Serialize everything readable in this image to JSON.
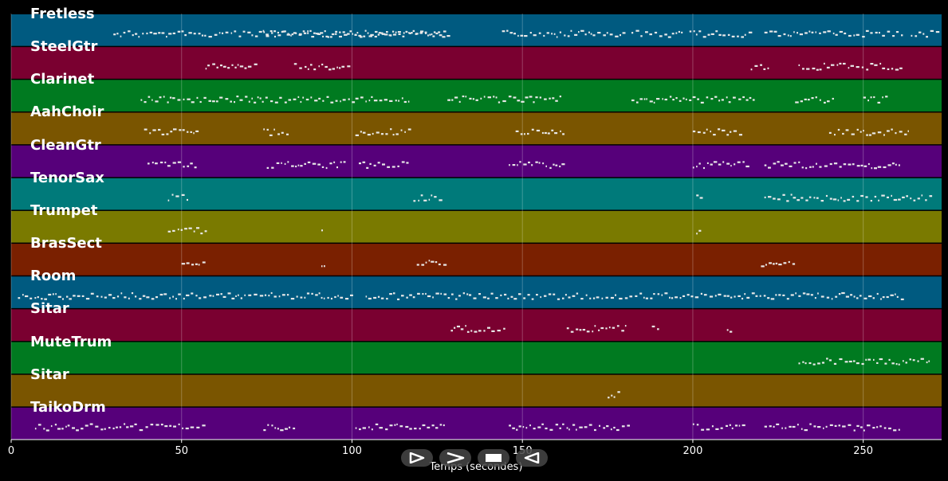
{
  "xaxis": {
    "label": "Temps (secondes)",
    "range": [
      0,
      273
    ],
    "ticks": [
      {
        "value": 0,
        "label": "0"
      },
      {
        "value": 50,
        "label": "50"
      },
      {
        "value": 100,
        "label": "100"
      },
      {
        "value": 150,
        "label": "150"
      },
      {
        "value": 200,
        "label": "200"
      },
      {
        "value": 250,
        "label": "250"
      }
    ],
    "grid": true
  },
  "tracks": [
    {
      "name": "Fretless",
      "color": "#005a80",
      "segments": [
        [
          30,
          128
        ],
        [
          74,
          99
        ],
        [
          100,
          127
        ],
        [
          144,
          170
        ],
        [
          170,
          180
        ],
        [
          182,
          197
        ],
        [
          199,
          217
        ],
        [
          221,
          262
        ],
        [
          264,
          272
        ]
      ]
    },
    {
      "name": "SteelGtr",
      "color": "#7a0030",
      "segments": [
        [
          57,
          72
        ],
        [
          83,
          99
        ],
        [
          217,
          222
        ],
        [
          231,
          261
        ]
      ]
    },
    {
      "name": "Clarinet",
      "color": "#007a20",
      "segments": [
        [
          38,
          101
        ],
        [
          101,
          117
        ],
        [
          128,
          162
        ],
        [
          182,
          195
        ],
        [
          196,
          218
        ],
        [
          230,
          241
        ],
        [
          250,
          257
        ]
      ]
    },
    {
      "name": "AahChoir",
      "color": "#7a5500",
      "segments": [
        [
          39,
          55
        ],
        [
          74,
          81
        ],
        [
          101,
          117
        ],
        [
          148,
          162
        ],
        [
          200,
          215
        ],
        [
          240,
          264
        ]
      ]
    },
    {
      "name": "CleanGtr",
      "color": "#56007a",
      "segments": [
        [
          40,
          54
        ],
        [
          75,
          98
        ],
        [
          102,
          116
        ],
        [
          146,
          162
        ],
        [
          200,
          216
        ],
        [
          221,
          261
        ]
      ]
    },
    {
      "name": "TenorSax",
      "color": "#007a7a",
      "segments": [
        [
          46,
          52
        ],
        [
          118,
          127
        ],
        [
          201,
          203
        ],
        [
          221,
          270
        ]
      ]
    },
    {
      "name": "Trumpet",
      "color": "#7a7a00",
      "segments": [
        [
          46,
          57
        ],
        [
          91,
          92
        ],
        [
          201,
          203
        ]
      ]
    },
    {
      "name": "BrasSect",
      "color": "#7a2000",
      "segments": [
        [
          50,
          57
        ],
        [
          91,
          92
        ],
        [
          119,
          127
        ],
        [
          220,
          230
        ]
      ]
    },
    {
      "name": "Room",
      "color": "#005a80",
      "segments": [
        [
          2,
          100
        ],
        [
          104,
          262
        ]
      ]
    },
    {
      "name": "Sitar",
      "color": "#7a0030",
      "segments": [
        [
          129,
          145
        ],
        [
          163,
          181
        ],
        [
          188,
          190
        ],
        [
          210,
          212
        ]
      ]
    },
    {
      "name": "MuteTrum",
      "color": "#007a20",
      "segments": [
        [
          231,
          270
        ]
      ]
    },
    {
      "name": "Sitar",
      "color": "#7a5500",
      "segments": [
        [
          175,
          178
        ]
      ]
    },
    {
      "name": "TaikoDrm",
      "color": "#56007a",
      "segments": [
        [
          7,
          57
        ],
        [
          74,
          83
        ],
        [
          101,
          127
        ],
        [
          146,
          181
        ],
        [
          200,
          216
        ],
        [
          221,
          261
        ]
      ]
    }
  ],
  "controls": [
    {
      "name": "play-button",
      "icon": "play-icon"
    },
    {
      "name": "fast-forward-button",
      "icon": "fast-forward-icon"
    },
    {
      "name": "stop-button",
      "icon": "stop-icon"
    },
    {
      "name": "rewind-button",
      "icon": "rewind-icon"
    }
  ]
}
